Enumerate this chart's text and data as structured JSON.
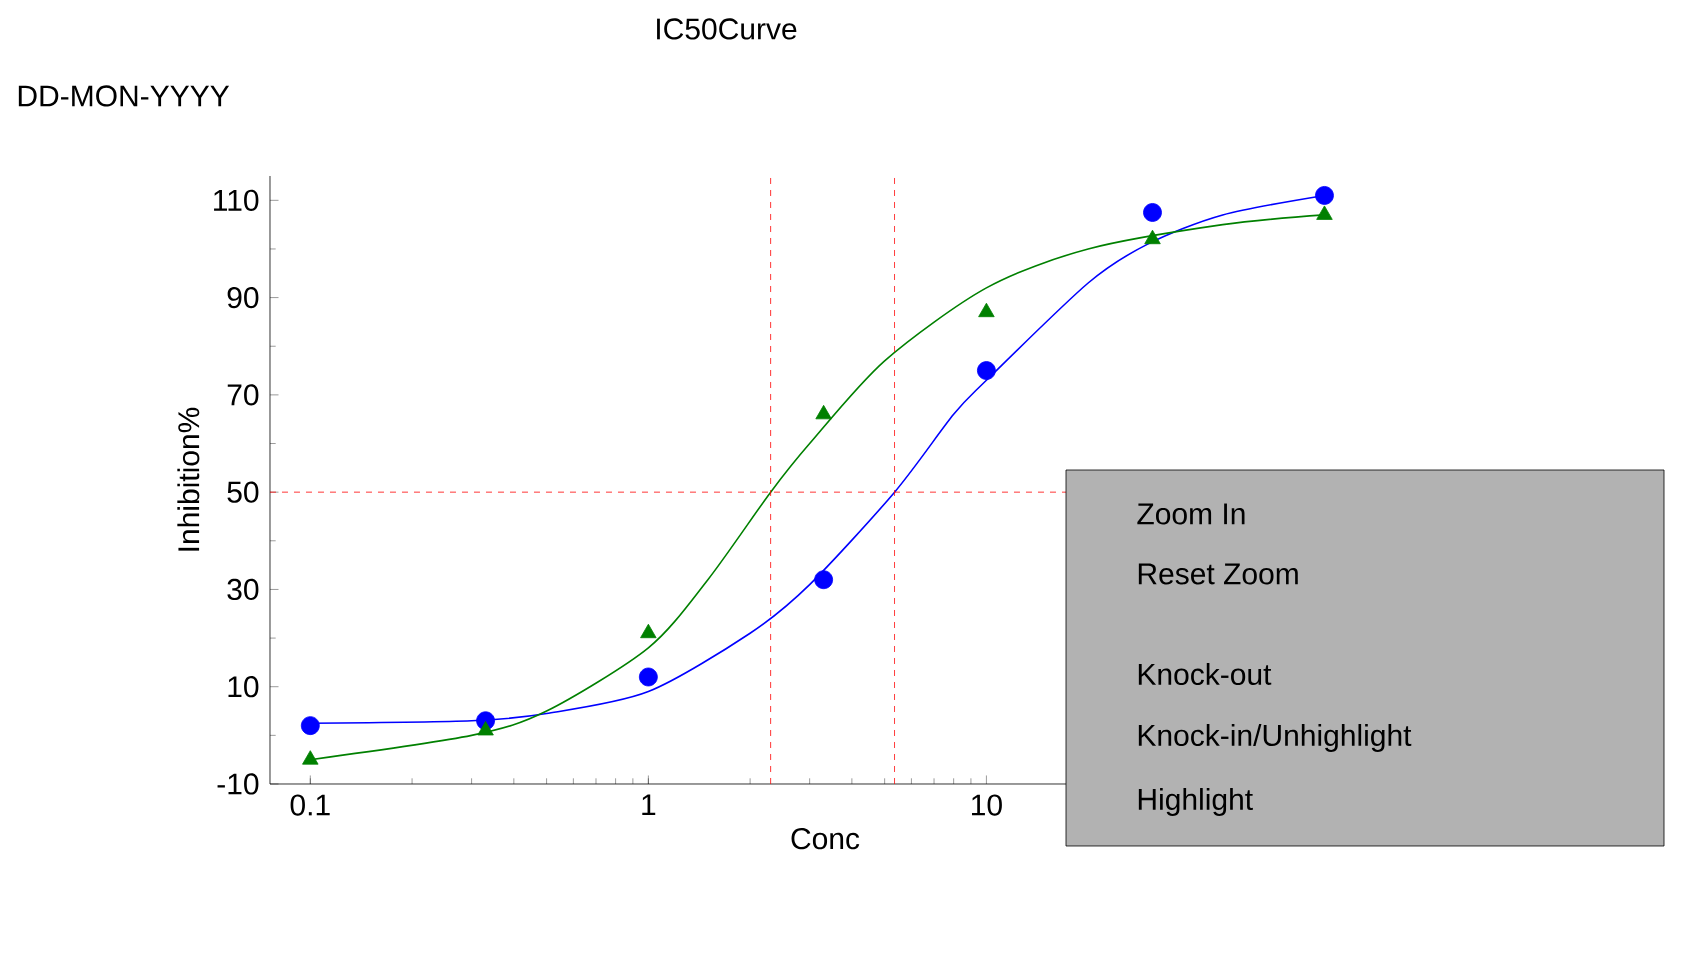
{
  "chart_data": {
    "type": "scatter",
    "title": "IC50Curve",
    "xlabel": "Conc",
    "ylabel": "Inhibition%",
    "log": "x",
    "xlim": [
      0.076,
      146
    ],
    "ylim": [
      -10,
      115
    ],
    "xticks": [
      0.1,
      1,
      10
    ],
    "yticks": [
      -10,
      10,
      30,
      50,
      70,
      90,
      110
    ],
    "series": [
      {
        "type": "line",
        "color": "#0000ff",
        "marker": "none",
        "x": [
          0.1,
          0.3,
          0.5,
          1,
          2,
          3,
          5.35,
          8,
          10,
          20,
          30,
          50,
          100
        ],
        "values": [
          2.5,
          3,
          4.5,
          9,
          21,
          31,
          50,
          66,
          73,
          93,
          101,
          107,
          111
        ]
      },
      {
        "type": "line",
        "color": "#008000",
        "marker": "none",
        "x": [
          0.1,
          0.3,
          0.5,
          1,
          1.5,
          2.3,
          3,
          5,
          10,
          20,
          50,
          100
        ],
        "values": [
          -5,
          0,
          5,
          18,
          32,
          50,
          60,
          77,
          92,
          100,
          105,
          107
        ]
      },
      {
        "type": "scatter",
        "color": "#0000ff",
        "marker": "circle",
        "x": [
          0.1,
          0.33,
          1,
          3.3,
          10,
          31,
          100
        ],
        "values": [
          2,
          3,
          12,
          32,
          75,
          107.5,
          111
        ]
      },
      {
        "type": "scatter",
        "color": "#008000",
        "marker": "triangle",
        "x": [
          0.1,
          0.33,
          1,
          3.3,
          10,
          31,
          100
        ],
        "values": [
          -5,
          1,
          21,
          66,
          87,
          102,
          107
        ]
      }
    ],
    "ref_lines": [
      {
        "axis": "y",
        "value": 50,
        "color": "#ff0000",
        "line_style": "dashed"
      },
      {
        "axis": "x",
        "value": 2.3,
        "color": "#ff0000",
        "line_style": "dashed"
      },
      {
        "axis": "x",
        "value": 5.35,
        "color": "#ff0000",
        "line_style": "dashed"
      }
    ],
    "annotations": [
      "DD-MON-YYYY",
      "Zoom In",
      "Reset Zoom",
      "Knock-out",
      "Knock-in/Unhighlight",
      "Highlight"
    ]
  }
}
